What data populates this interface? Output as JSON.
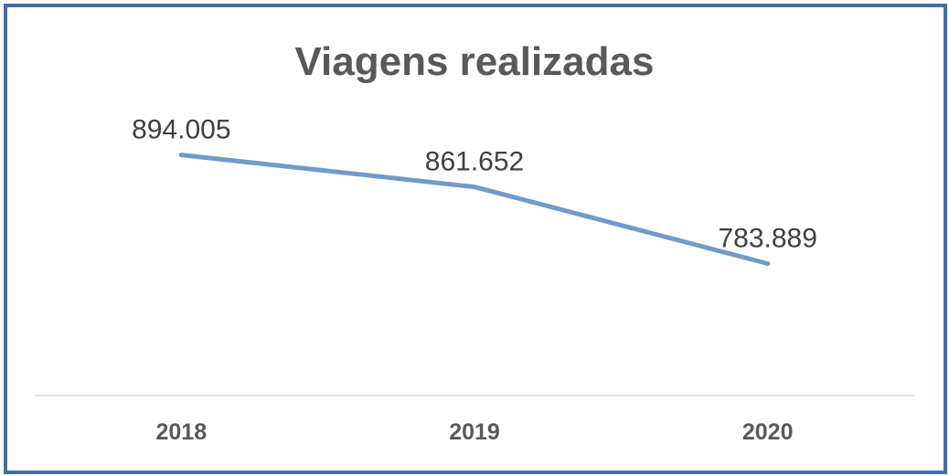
{
  "chart_data": {
    "type": "line",
    "title": "Viagens realizadas",
    "xlabel": "",
    "ylabel": "",
    "categories": [
      "2018",
      "2019",
      "2020"
    ],
    "values": [
      894005,
      861652,
      783889
    ],
    "data_labels": [
      "894.005",
      "861.652",
      "783.889"
    ],
    "ylim": [
      650000,
      940000
    ],
    "grid": false,
    "legend": "none",
    "colors": {
      "line": "#6f9bc8",
      "border": "#3f6fa3",
      "axis": "#d9d9d9",
      "title": "#595959",
      "label": "#404040"
    }
  }
}
